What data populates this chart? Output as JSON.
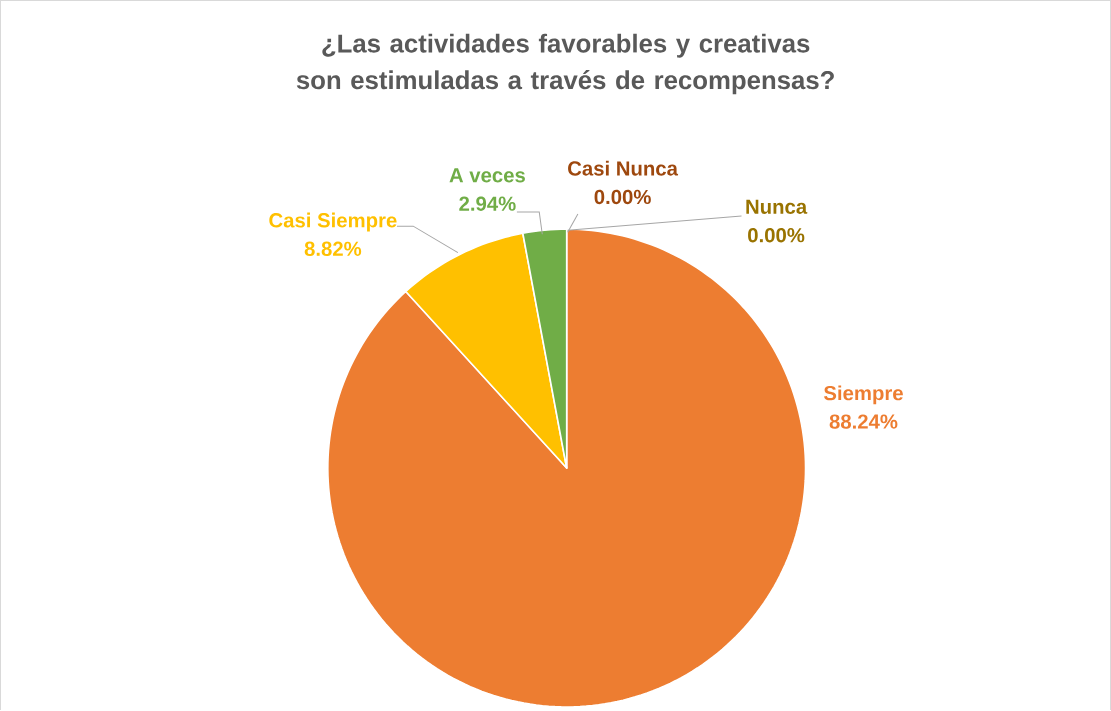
{
  "chart_data": {
    "type": "pie",
    "title": "¿Las actividades favorables y creativas son estimuladas a través de recompensas?",
    "categories": [
      "Siempre",
      "Casi Siempre",
      "A veces",
      "Casi Nunca",
      "Nunca"
    ],
    "values": [
      88.24,
      8.82,
      2.94,
      0.0,
      0.0
    ],
    "value_labels": [
      "88.24%",
      "8.82%",
      "2.94%",
      "0.00%",
      "0.00%"
    ],
    "colors": [
      "#ed7d31",
      "#ffc000",
      "#70ad47",
      "#9e480e",
      "#997300"
    ]
  }
}
